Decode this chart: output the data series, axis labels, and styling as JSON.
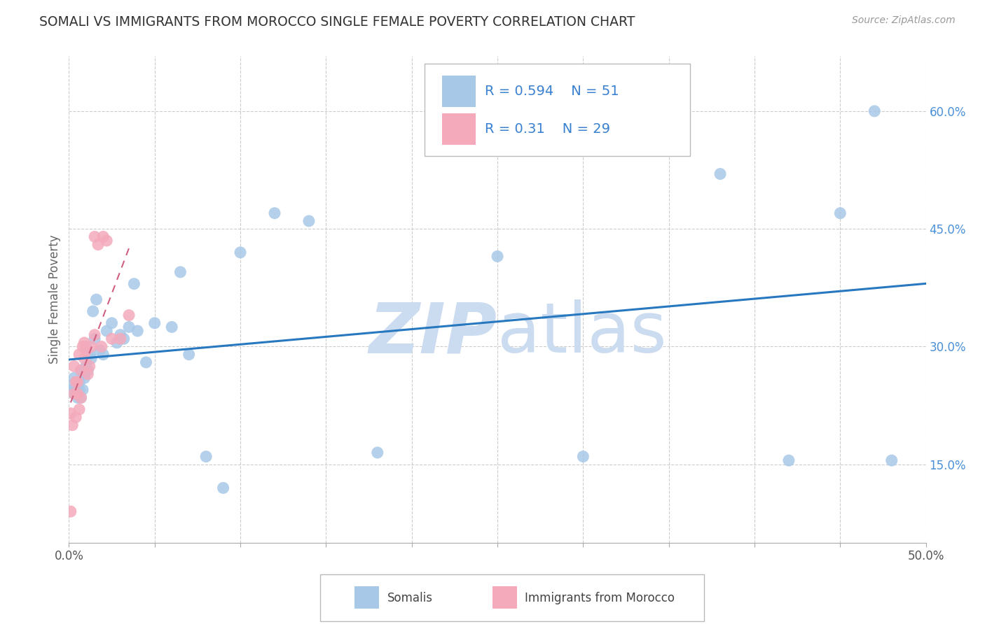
{
  "title": "SOMALI VS IMMIGRANTS FROM MOROCCO SINGLE FEMALE POVERTY CORRELATION CHART",
  "source": "Source: ZipAtlas.com",
  "ylabel": "Single Female Poverty",
  "xlim": [
    0.0,
    0.5
  ],
  "ylim": [
    0.05,
    0.67
  ],
  "xticks": [
    0.0,
    0.05,
    0.1,
    0.15,
    0.2,
    0.25,
    0.3,
    0.35,
    0.4,
    0.45,
    0.5
  ],
  "xtick_labels_show": [
    "0.0%",
    "",
    "",
    "",
    "",
    "",
    "",
    "",
    "",
    "",
    "50.0%"
  ],
  "ytick_vals_right": [
    0.15,
    0.3,
    0.45,
    0.6
  ],
  "ytick_labels_right": [
    "15.0%",
    "30.0%",
    "45.0%",
    "60.0%"
  ],
  "r_somali": 0.594,
  "n_somali": 51,
  "r_morocco": 0.31,
  "n_morocco": 29,
  "color_somali": "#a8c8e8",
  "color_morocco": "#f4aabb",
  "line_color_somali": "#2878c0",
  "line_color_morocco": "#d06080",
  "watermark_color": "#ccdcf0",
  "background_color": "#ffffff",
  "grid_color": "#cccccc",
  "somali_x": [
    0.001,
    0.002,
    0.003,
    0.003,
    0.004,
    0.004,
    0.005,
    0.005,
    0.006,
    0.006,
    0.007,
    0.007,
    0.008,
    0.008,
    0.009,
    0.01,
    0.01,
    0.011,
    0.012,
    0.013,
    0.014,
    0.015,
    0.016,
    0.018,
    0.02,
    0.022,
    0.025,
    0.028,
    0.03,
    0.032,
    0.035,
    0.038,
    0.04,
    0.045,
    0.05,
    0.06,
    0.065,
    0.07,
    0.08,
    0.09,
    0.1,
    0.12,
    0.14,
    0.18,
    0.25,
    0.3,
    0.38,
    0.42,
    0.45,
    0.47,
    0.48
  ],
  "somali_y": [
    0.25,
    0.245,
    0.24,
    0.26,
    0.245,
    0.255,
    0.235,
    0.255,
    0.245,
    0.255,
    0.27,
    0.235,
    0.245,
    0.265,
    0.26,
    0.275,
    0.3,
    0.27,
    0.29,
    0.285,
    0.345,
    0.31,
    0.36,
    0.295,
    0.29,
    0.32,
    0.33,
    0.305,
    0.315,
    0.31,
    0.325,
    0.38,
    0.32,
    0.28,
    0.33,
    0.325,
    0.395,
    0.29,
    0.16,
    0.12,
    0.42,
    0.47,
    0.46,
    0.165,
    0.415,
    0.16,
    0.52,
    0.155,
    0.47,
    0.6,
    0.155
  ],
  "morocco_x": [
    0.001,
    0.001,
    0.002,
    0.003,
    0.003,
    0.004,
    0.004,
    0.005,
    0.005,
    0.006,
    0.006,
    0.007,
    0.007,
    0.008,
    0.009,
    0.009,
    0.01,
    0.011,
    0.012,
    0.013,
    0.015,
    0.015,
    0.017,
    0.019,
    0.02,
    0.022,
    0.025,
    0.03,
    0.035
  ],
  "morocco_y": [
    0.09,
    0.215,
    0.2,
    0.24,
    0.275,
    0.21,
    0.255,
    0.24,
    0.255,
    0.22,
    0.29,
    0.27,
    0.235,
    0.3,
    0.285,
    0.305,
    0.295,
    0.265,
    0.275,
    0.3,
    0.315,
    0.44,
    0.43,
    0.3,
    0.44,
    0.435,
    0.31,
    0.31,
    0.34
  ]
}
